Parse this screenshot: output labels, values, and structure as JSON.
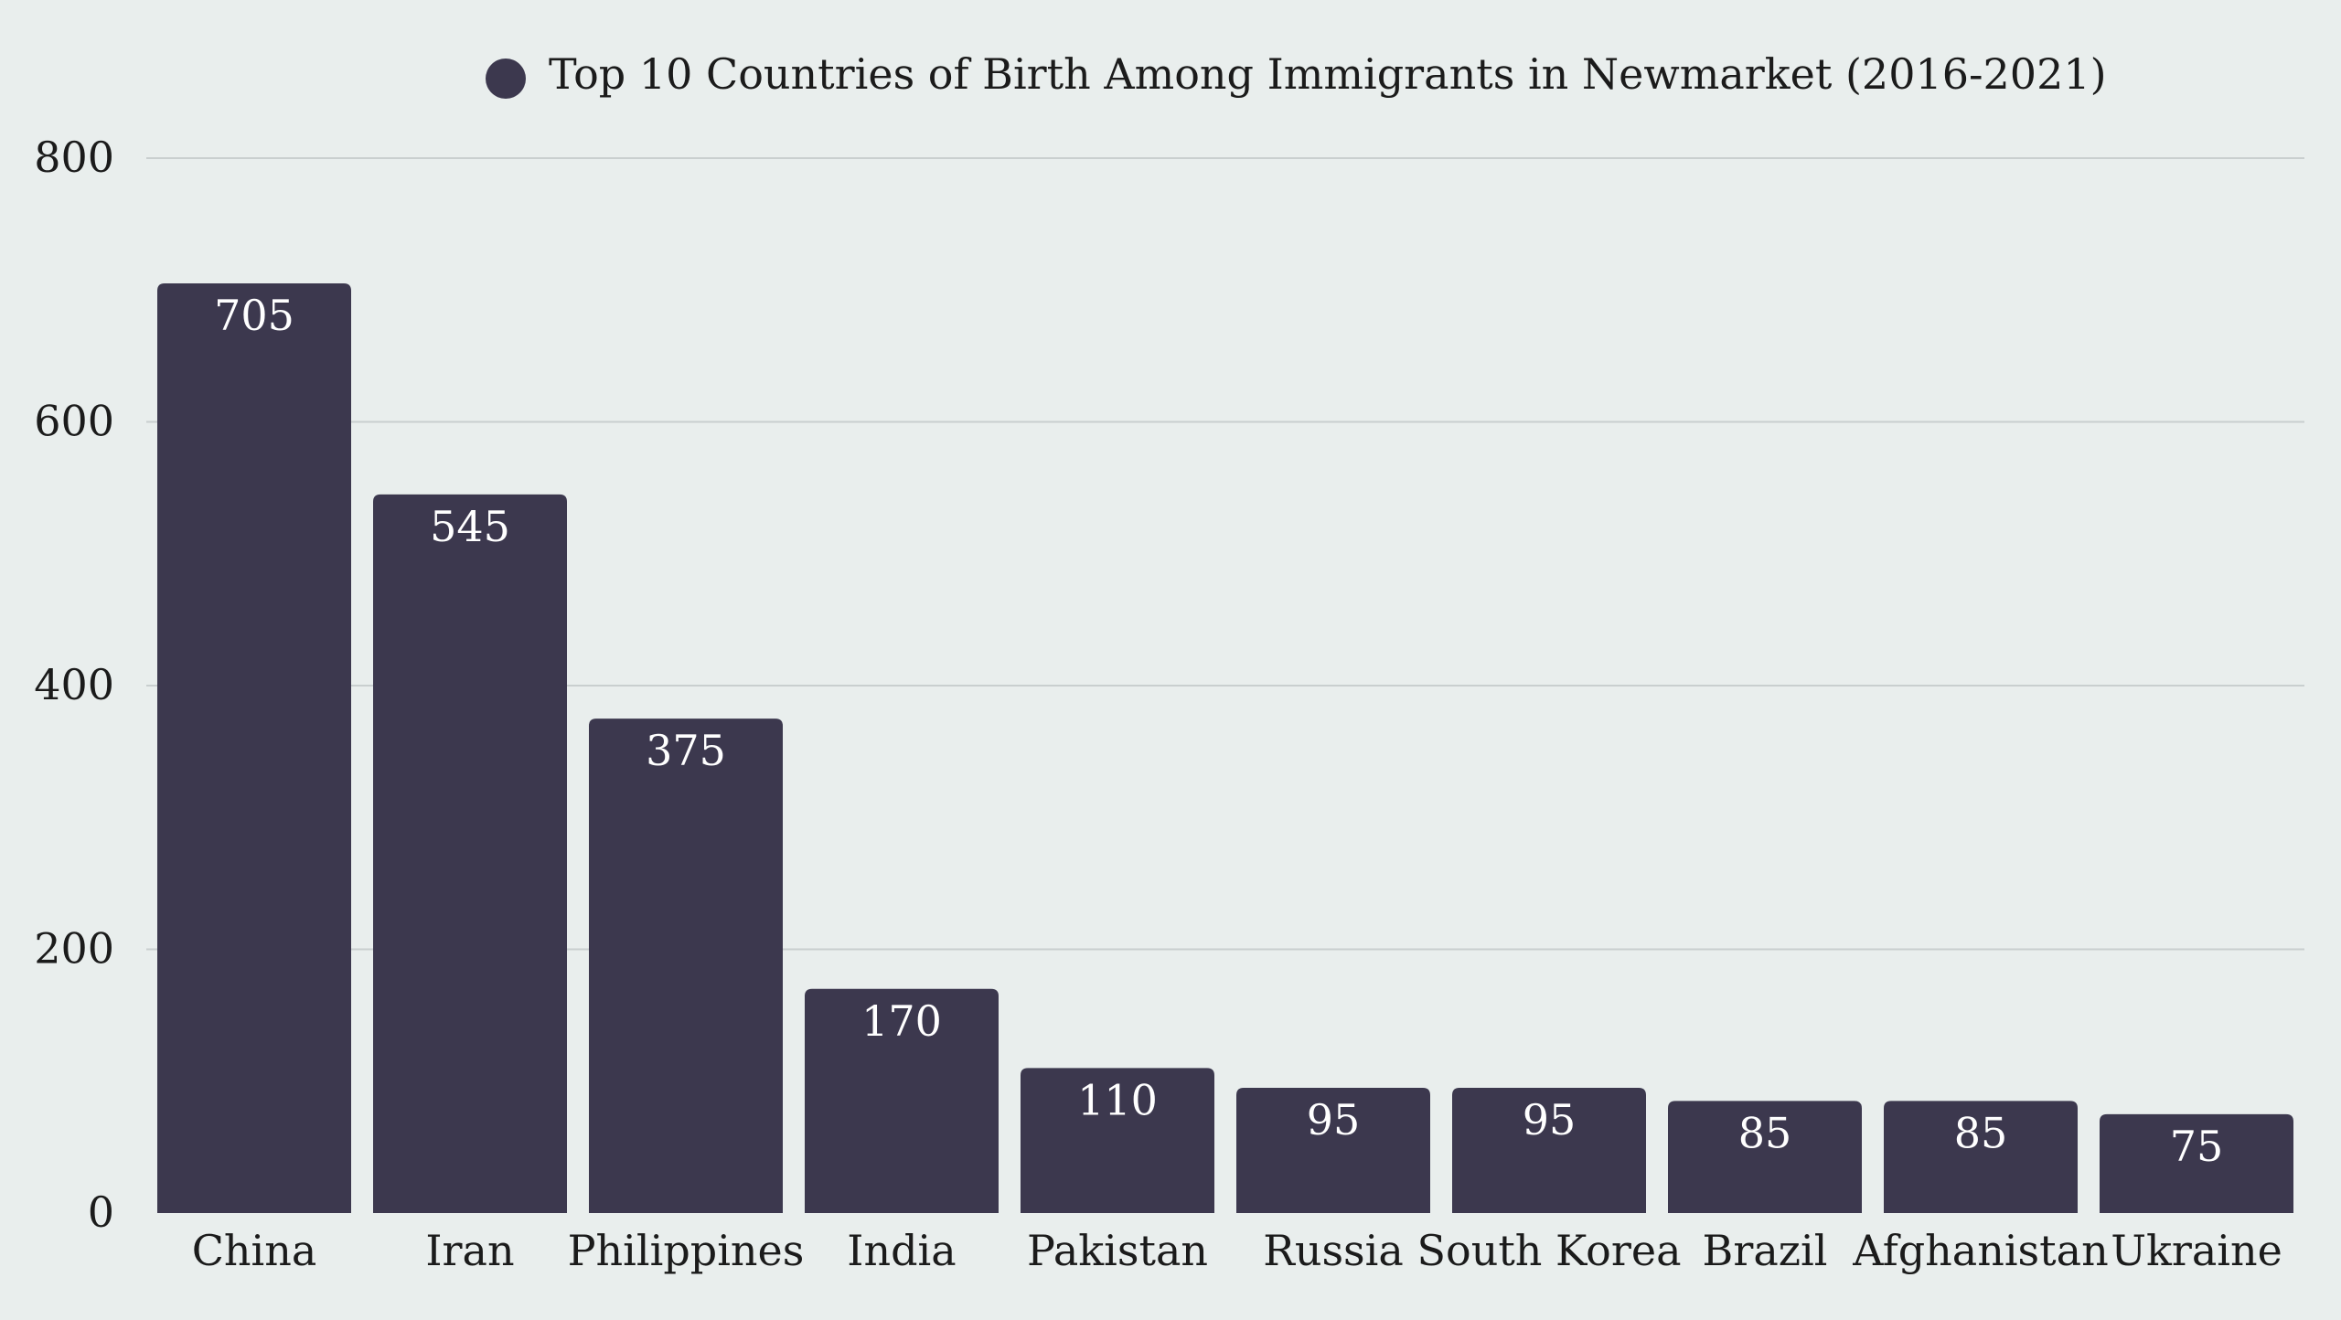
{
  "chart_data": {
    "type": "bar",
    "title": "Top 10 Countries of Birth Among Immigrants in Newmarket (2016-2021)",
    "legend": [
      "Top 10 Countries of Birth Among Immigrants in Newmarket (2016-2021)"
    ],
    "legend_position": "top-center",
    "categories": [
      "China",
      "Iran",
      "Philippines",
      "India",
      "Pakistan",
      "Russia",
      "South Korea",
      "Brazil",
      "Afghanistan",
      "Ukraine"
    ],
    "values": [
      705,
      545,
      375,
      170,
      110,
      95,
      95,
      85,
      85,
      75
    ],
    "value_labels": [
      "705",
      "545",
      "375",
      "170",
      "110",
      "95",
      "95",
      "85",
      "85",
      "75"
    ],
    "xlabel": "",
    "ylabel": "",
    "ylim": [
      0,
      800
    ],
    "yticks": [
      0,
      200,
      400,
      600,
      800
    ],
    "ytick_labels": [
      "0",
      "200",
      "400",
      "600",
      "800"
    ],
    "grid": true,
    "colors": {
      "background": "#e9eeed",
      "bar": "#3c384e",
      "grid": "#c9cfcf",
      "text": "#1b1b1b",
      "label": "#ffffff"
    }
  }
}
